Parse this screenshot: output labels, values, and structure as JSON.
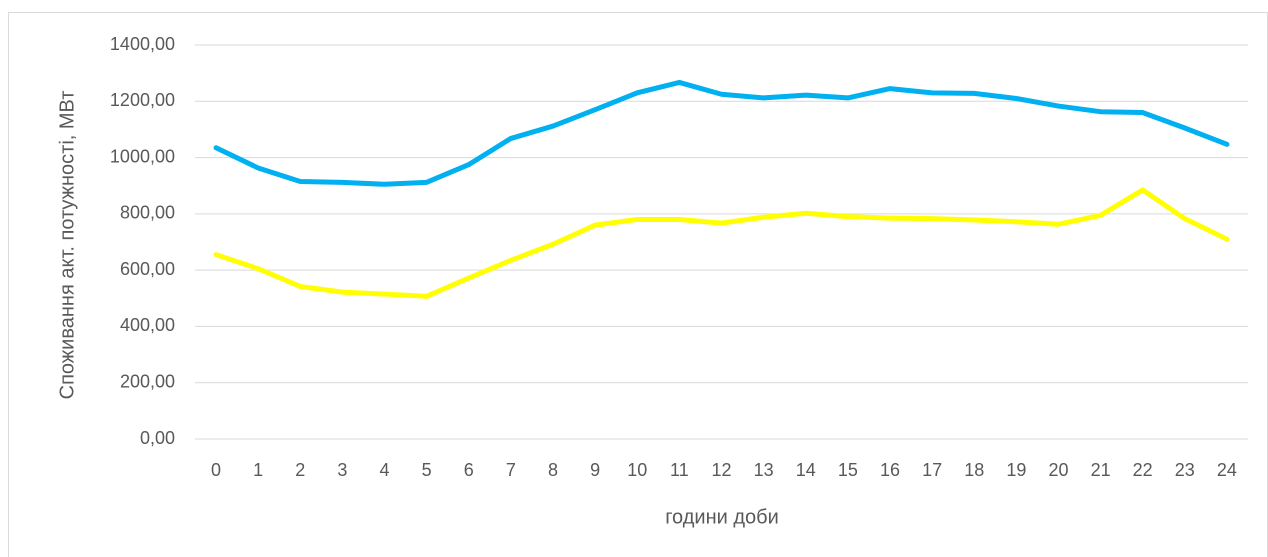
{
  "chart_data": {
    "type": "line",
    "x_label": "години доби",
    "y_label": "Споживання акт. потужності, МВт",
    "categories": [
      0,
      1,
      2,
      3,
      4,
      5,
      6,
      7,
      8,
      9,
      10,
      11,
      12,
      13,
      14,
      15,
      16,
      17,
      18,
      19,
      20,
      21,
      22,
      23,
      24
    ],
    "series": [
      {
        "color": "#00b0f0",
        "values": [
          1035,
          963,
          915,
          912,
          905,
          912,
          975,
          1068,
          1112,
          1170,
          1230,
          1267,
          1225,
          1212,
          1222,
          1212,
          1245,
          1230,
          1228,
          1210,
          1183,
          1163,
          1160,
          1105,
          1047
        ]
      },
      {
        "color": "#ffff00",
        "values": [
          655,
          605,
          542,
          522,
          515,
          507,
          572,
          635,
          692,
          760,
          780,
          780,
          767,
          788,
          802,
          790,
          785,
          783,
          778,
          772,
          763,
          795,
          885,
          783,
          710
        ]
      }
    ],
    "ylim": [
      0,
      1400
    ],
    "yticks": [
      {
        "value": 0,
        "label": "0,00"
      },
      {
        "value": 200,
        "label": "200,00"
      },
      {
        "value": 400,
        "label": "400,00"
      },
      {
        "value": 600,
        "label": "600,00"
      },
      {
        "value": 800,
        "label": "800,00"
      },
      {
        "value": 1000,
        "label": "1000,00"
      },
      {
        "value": 1200,
        "label": "1200,00"
      },
      {
        "value": 1400,
        "label": "1400,00"
      }
    ],
    "grid": true
  }
}
